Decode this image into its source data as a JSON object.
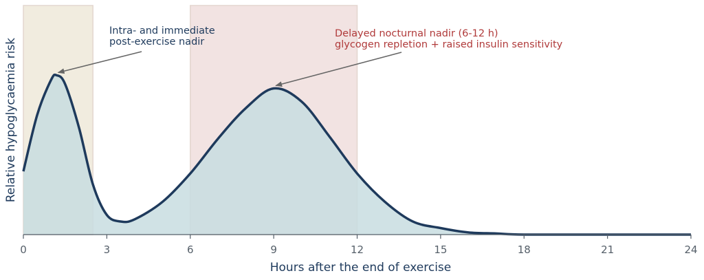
{
  "chart_data": {
    "type": "area",
    "title": "",
    "xlabel": "Hours after the end of exercise",
    "ylabel": "Relative hypoglycaemia risk",
    "xlim": [
      0,
      24
    ],
    "ylim": [
      0,
      1.05
    ],
    "xticks": [
      "0",
      "3",
      "6",
      "9",
      "12",
      "15",
      "18",
      "21",
      "24"
    ],
    "grid": false,
    "legend": "none",
    "shaded_regions": [
      {
        "x0": 0,
        "x1": 2.5,
        "color": "#f1ecdf"
      },
      {
        "x0": 6,
        "x1": 12,
        "color": "#f2e3e2"
      }
    ],
    "series": [
      {
        "x": [
          0,
          0.5,
          1,
          1.2,
          1.5,
          2,
          2.5,
          3,
          3.5,
          4,
          5,
          6,
          7,
          8,
          9,
          10,
          11,
          12,
          13,
          14,
          15,
          16,
          17,
          18,
          21,
          24
        ],
        "values": [
          0.29,
          0.55,
          0.71,
          0.73,
          0.69,
          0.49,
          0.23,
          0.09,
          0.06,
          0.07,
          0.15,
          0.28,
          0.44,
          0.58,
          0.67,
          0.61,
          0.45,
          0.28,
          0.15,
          0.06,
          0.03,
          0.01,
          0.005,
          0.0,
          0.0,
          0.0
        ],
        "line_color": "#1e3a5c",
        "fill_color": "#c8dde0"
      }
    ],
    "annotations": [
      {
        "lines": [
          "Intra- and immediate",
          "post-exercise nadir"
        ],
        "point": [
          1.2,
          0.73
        ],
        "color": "#1e3a5c"
      },
      {
        "lines": [
          "Delayed nocturnal nadir (6-12 h)",
          "glycogen repletion + raised insulin sensitivity"
        ],
        "point": [
          9,
          0.67
        ],
        "color": "#b03a3a"
      }
    ]
  }
}
